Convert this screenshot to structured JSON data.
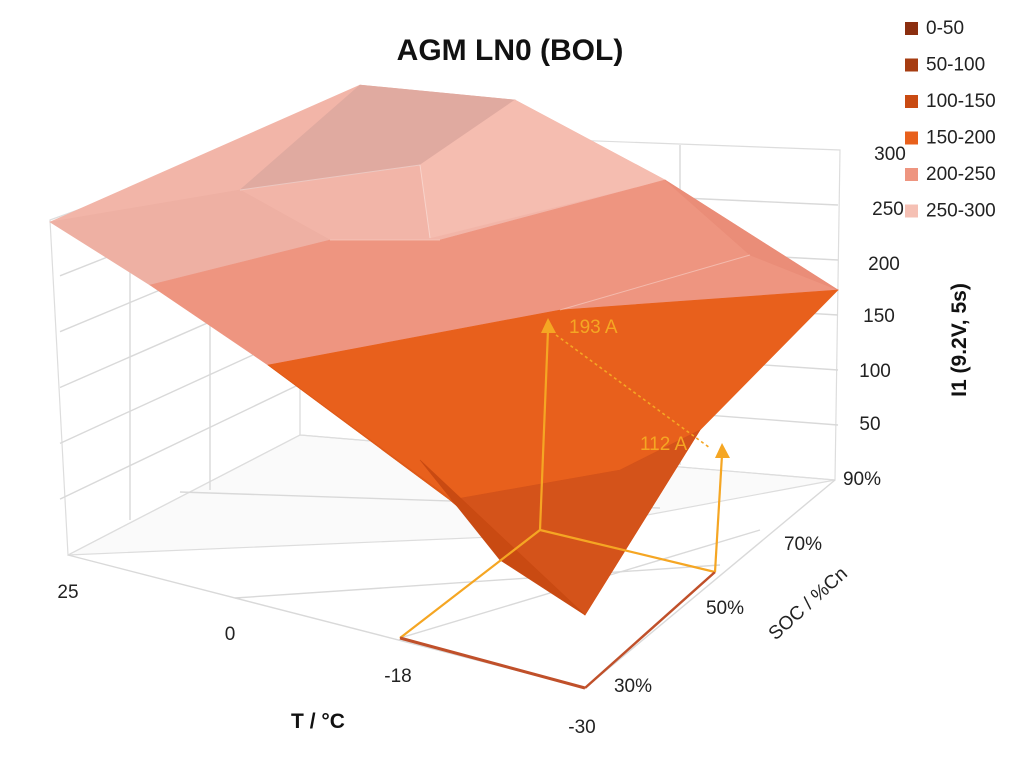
{
  "chart_data": {
    "type": "surface",
    "title": "AGM LN0 (BOL)",
    "xlabel": "T / °C",
    "ylabel": "SOC / %Cn",
    "zlabel": "I1 (9.2V, 5s)",
    "x_ticks": [
      "25",
      "0",
      "-18",
      "-30"
    ],
    "y_ticks": [
      "30%",
      "50%",
      "70%",
      "90%"
    ],
    "z_ticks": [
      "50",
      "100",
      "150",
      "200",
      "250",
      "300"
    ],
    "z_range": [
      0,
      300
    ],
    "grid": true,
    "legend_position": "right",
    "legend": [
      {
        "label": "0-50",
        "color": "#8b2e0f"
      },
      {
        "label": "50-100",
        "color": "#a63c11"
      },
      {
        "label": "100-150",
        "color": "#c94a12"
      },
      {
        "label": "150-200",
        "color": "#e8601c"
      },
      {
        "label": "200-250",
        "color": "#ee9580"
      },
      {
        "label": "250-300",
        "color": "#f5c0b4"
      }
    ],
    "annotations": [
      {
        "label": "193 A",
        "T": "-18",
        "SOC": "50%",
        "value": 193
      },
      {
        "label": "112 A",
        "T": "-30",
        "SOC": "50%",
        "value": 112
      }
    ],
    "annotation_color": "#f5a623"
  }
}
